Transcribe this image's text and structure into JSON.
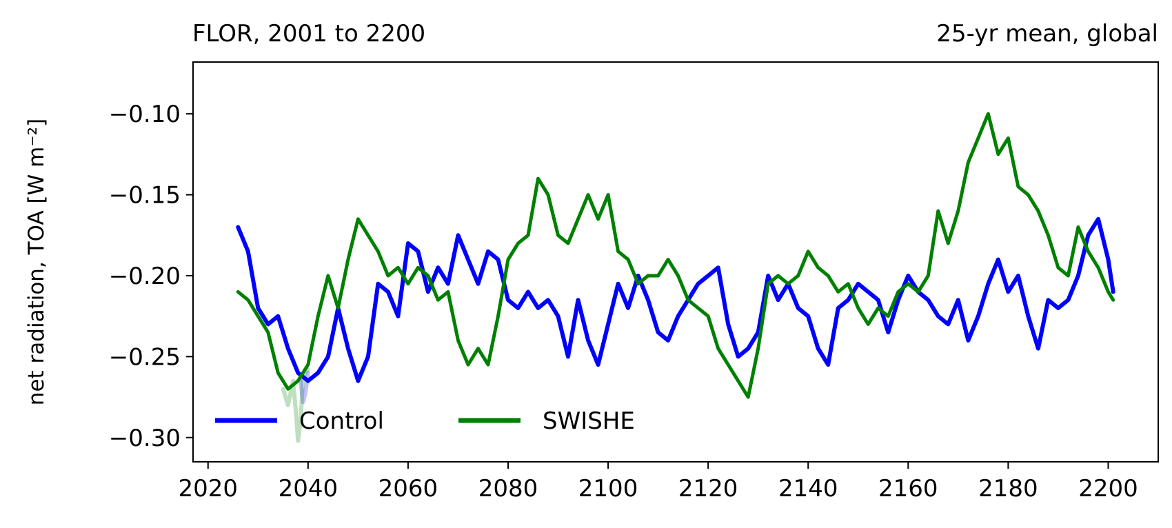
{
  "chart_data": {
    "type": "line",
    "title_left": "FLOR, 2001 to 2200",
    "title_right": "25-yr mean, global",
    "ylabel": "net radiation, TOA [W m⁻²]",
    "xlabel": "",
    "xlim": [
      2017,
      2210
    ],
    "ylim": [
      -0.315,
      -0.068
    ],
    "xticks": [
      2020,
      2040,
      2060,
      2080,
      2100,
      2120,
      2140,
      2160,
      2180,
      2200
    ],
    "yticks": [
      -0.3,
      -0.25,
      -0.2,
      -0.15,
      -0.1
    ],
    "ytick_labels": [
      "−0.30",
      "−0.25",
      "−0.20",
      "−0.15",
      "−0.10"
    ],
    "grid": false,
    "legend": {
      "placement": "lower-left",
      "entries": [
        "Control",
        "SWISHE"
      ]
    },
    "colors": {
      "Control": "#0000ff",
      "SWISHE": "#008000"
    },
    "series": [
      {
        "name": "Control",
        "x": [
          2026,
          2028,
          2030,
          2032,
          2034,
          2036,
          2038,
          2040,
          2042,
          2044,
          2046,
          2048,
          2050,
          2052,
          2054,
          2056,
          2058,
          2060,
          2062,
          2064,
          2066,
          2068,
          2070,
          2072,
          2074,
          2076,
          2078,
          2080,
          2082,
          2084,
          2086,
          2088,
          2090,
          2092,
          2094,
          2096,
          2098,
          2100,
          2102,
          2104,
          2106,
          2108,
          2110,
          2112,
          2114,
          2116,
          2118,
          2120,
          2122,
          2124,
          2126,
          2128,
          2130,
          2132,
          2134,
          2136,
          2138,
          2140,
          2142,
          2144,
          2146,
          2148,
          2150,
          2152,
          2154,
          2156,
          2158,
          2160,
          2162,
          2164,
          2166,
          2168,
          2170,
          2172,
          2174,
          2176,
          2178,
          2180,
          2182,
          2184,
          2186,
          2188,
          2190,
          2192,
          2194,
          2196,
          2198,
          2200,
          2201
        ],
        "values": [
          -0.17,
          -0.185,
          -0.22,
          -0.23,
          -0.225,
          -0.245,
          -0.26,
          -0.265,
          -0.26,
          -0.25,
          -0.22,
          -0.245,
          -0.265,
          -0.25,
          -0.205,
          -0.21,
          -0.225,
          -0.18,
          -0.185,
          -0.21,
          -0.195,
          -0.205,
          -0.175,
          -0.19,
          -0.205,
          -0.185,
          -0.19,
          -0.215,
          -0.22,
          -0.21,
          -0.22,
          -0.215,
          -0.225,
          -0.25,
          -0.215,
          -0.24,
          -0.255,
          -0.23,
          -0.205,
          -0.22,
          -0.2,
          -0.215,
          -0.235,
          -0.24,
          -0.225,
          -0.215,
          -0.205,
          -0.2,
          -0.195,
          -0.23,
          -0.25,
          -0.245,
          -0.235,
          -0.2,
          -0.215,
          -0.205,
          -0.22,
          -0.225,
          -0.245,
          -0.255,
          -0.22,
          -0.215,
          -0.205,
          -0.21,
          -0.215,
          -0.235,
          -0.215,
          -0.2,
          -0.21,
          -0.215,
          -0.225,
          -0.23,
          -0.215,
          -0.24,
          -0.225,
          -0.205,
          -0.19,
          -0.21,
          -0.2,
          -0.225,
          -0.245,
          -0.215,
          -0.22,
          -0.215,
          -0.2,
          -0.175,
          -0.165,
          -0.19,
          -0.21
        ]
      },
      {
        "name": "SWISHE",
        "x": [
          2026,
          2028,
          2030,
          2032,
          2034,
          2036,
          2038,
          2040,
          2042,
          2044,
          2046,
          2048,
          2050,
          2052,
          2054,
          2056,
          2058,
          2060,
          2062,
          2064,
          2066,
          2068,
          2070,
          2072,
          2074,
          2076,
          2078,
          2080,
          2082,
          2084,
          2086,
          2088,
          2090,
          2092,
          2094,
          2096,
          2098,
          2100,
          2102,
          2104,
          2106,
          2108,
          2110,
          2112,
          2114,
          2116,
          2118,
          2120,
          2122,
          2124,
          2126,
          2128,
          2130,
          2132,
          2134,
          2136,
          2138,
          2140,
          2142,
          2144,
          2146,
          2148,
          2150,
          2152,
          2154,
          2156,
          2158,
          2160,
          2162,
          2164,
          2166,
          2168,
          2170,
          2172,
          2174,
          2176,
          2178,
          2180,
          2182,
          2184,
          2186,
          2188,
          2190,
          2192,
          2194,
          2196,
          2198,
          2200,
          2201
        ],
        "values": [
          -0.21,
          -0.215,
          -0.225,
          -0.235,
          -0.26,
          -0.27,
          -0.265,
          -0.255,
          -0.225,
          -0.2,
          -0.22,
          -0.19,
          -0.165,
          -0.175,
          -0.185,
          -0.2,
          -0.195,
          -0.205,
          -0.195,
          -0.2,
          -0.215,
          -0.21,
          -0.24,
          -0.255,
          -0.245,
          -0.255,
          -0.225,
          -0.19,
          -0.18,
          -0.175,
          -0.14,
          -0.15,
          -0.175,
          -0.18,
          -0.165,
          -0.15,
          -0.165,
          -0.15,
          -0.185,
          -0.19,
          -0.205,
          -0.2,
          -0.2,
          -0.19,
          -0.2,
          -0.215,
          -0.22,
          -0.225,
          -0.245,
          -0.255,
          -0.265,
          -0.275,
          -0.245,
          -0.205,
          -0.2,
          -0.205,
          -0.2,
          -0.185,
          -0.195,
          -0.2,
          -0.21,
          -0.205,
          -0.22,
          -0.23,
          -0.22,
          -0.225,
          -0.21,
          -0.205,
          -0.21,
          -0.2,
          -0.16,
          -0.18,
          -0.16,
          -0.13,
          -0.115,
          -0.1,
          -0.125,
          -0.115,
          -0.145,
          -0.15,
          -0.16,
          -0.175,
          -0.195,
          -0.2,
          -0.17,
          -0.185,
          -0.195,
          -0.21,
          -0.215
        ]
      },
      {
        "name": "",
        "x": [
          2035,
          2036,
          2037,
          2037.6,
          2038,
          2038.5,
          2039,
          2040
        ],
        "values": [
          -0.27,
          -0.28,
          -0.265,
          -0.285,
          -0.302,
          -0.29,
          -0.262,
          -0.258
        ]
      },
      {
        "name": "",
        "x": [
          2038.5,
          2039,
          2039.5,
          2040
        ],
        "values": [
          -0.265,
          -0.278,
          -0.272,
          -0.26
        ]
      }
    ]
  }
}
